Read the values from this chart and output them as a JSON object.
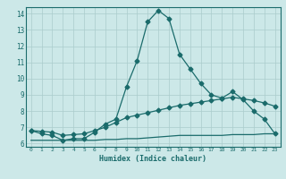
{
  "xlabel": "Humidex (Indice chaleur)",
  "background_color": "#cce8e8",
  "grid_color": "#aacccc",
  "line_color": "#1a6b6b",
  "xlim": [
    -0.5,
    23.5
  ],
  "ylim": [
    5.8,
    14.4
  ],
  "xticks": [
    0,
    1,
    2,
    3,
    4,
    5,
    6,
    7,
    8,
    9,
    10,
    11,
    12,
    13,
    14,
    15,
    16,
    17,
    18,
    19,
    20,
    21,
    22,
    23
  ],
  "yticks": [
    6,
    7,
    8,
    9,
    10,
    11,
    12,
    13,
    14
  ],
  "line1_x": [
    0,
    1,
    2,
    3,
    4,
    5,
    6,
    7,
    8,
    9,
    10,
    11,
    12,
    13,
    14,
    15,
    16,
    17,
    18,
    19,
    20,
    21,
    22,
    23
  ],
  "line1_y": [
    6.8,
    6.6,
    6.5,
    6.2,
    6.3,
    6.3,
    6.7,
    7.2,
    7.5,
    9.5,
    11.1,
    13.5,
    14.2,
    13.7,
    11.5,
    10.6,
    9.7,
    9.0,
    8.8,
    9.2,
    8.7,
    8.0,
    7.5,
    6.6
  ],
  "line2_x": [
    0,
    1,
    2,
    3,
    4,
    5,
    6,
    7,
    8,
    9,
    10,
    11,
    12,
    13,
    14,
    15,
    16,
    17,
    18,
    19,
    20,
    21,
    22,
    23
  ],
  "line2_y": [
    6.8,
    6.75,
    6.7,
    6.5,
    6.55,
    6.6,
    6.8,
    7.0,
    7.3,
    7.6,
    7.75,
    7.9,
    8.05,
    8.2,
    8.35,
    8.45,
    8.55,
    8.65,
    8.75,
    8.85,
    8.75,
    8.65,
    8.5,
    8.3
  ],
  "line3_x": [
    0,
    1,
    2,
    3,
    4,
    5,
    6,
    7,
    8,
    9,
    10,
    11,
    12,
    13,
    14,
    15,
    16,
    17,
    18,
    19,
    20,
    21,
    22,
    23
  ],
  "line3_y": [
    6.2,
    6.2,
    6.2,
    6.2,
    6.2,
    6.2,
    6.2,
    6.25,
    6.25,
    6.3,
    6.3,
    6.35,
    6.4,
    6.45,
    6.5,
    6.5,
    6.5,
    6.5,
    6.5,
    6.55,
    6.55,
    6.55,
    6.6,
    6.6
  ]
}
